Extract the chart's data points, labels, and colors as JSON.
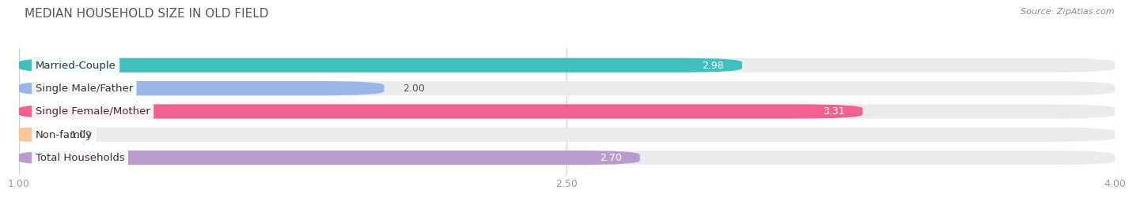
{
  "title": "MEDIAN HOUSEHOLD SIZE IN OLD FIELD",
  "source": "Source: ZipAtlas.com",
  "categories": [
    "Married-Couple",
    "Single Male/Father",
    "Single Female/Mother",
    "Non-family",
    "Total Households"
  ],
  "values": [
    2.98,
    2.0,
    3.31,
    1.09,
    2.7
  ],
  "bar_colors": [
    "#40bfbf",
    "#9ab5e8",
    "#f06090",
    "#f5c89a",
    "#b89ccc"
  ],
  "bg_bar_color": "#ebebeb",
  "xlim": [
    1.0,
    4.0
  ],
  "xticks": [
    1.0,
    2.5,
    4.0
  ],
  "xtick_labels": [
    "1.00",
    "2.50",
    "4.00"
  ],
  "background_color": "#ffffff",
  "bar_height": 0.62,
  "title_fontsize": 11,
  "label_fontsize": 9.5,
  "tick_fontsize": 9,
  "value_fontsize": 9
}
